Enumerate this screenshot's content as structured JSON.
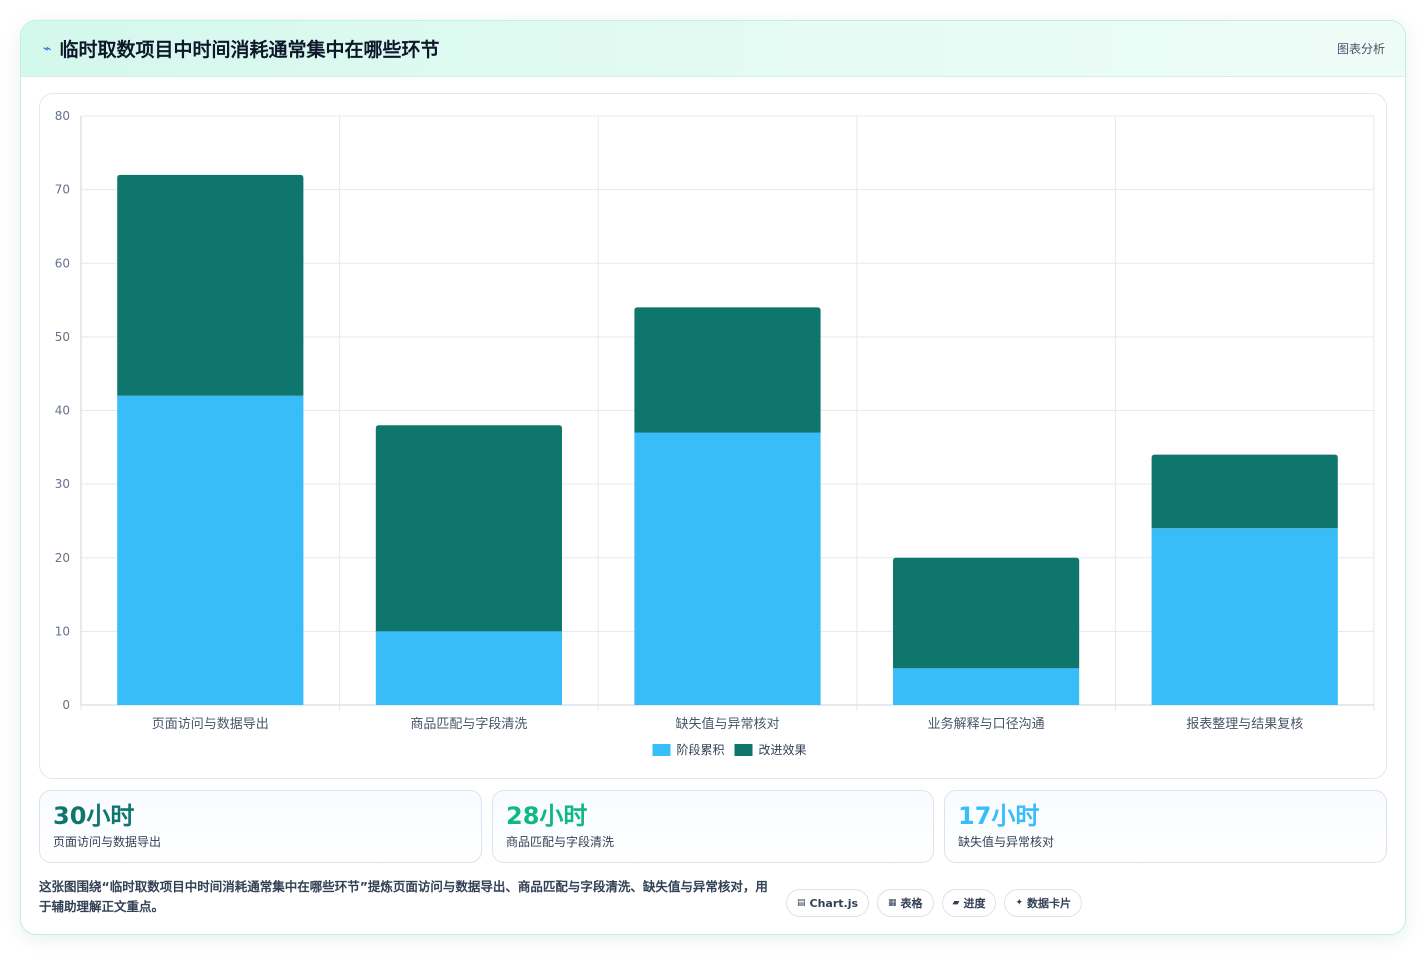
{
  "header": {
    "icon": "chart-trend-icon",
    "title": "临时取数项目中时间消耗通常集中在哪些环节",
    "tag": "图表分析"
  },
  "chart_data": {
    "type": "bar",
    "stacked": true,
    "categories": [
      "页面访问与数据导出",
      "商品匹配与字段清洗",
      "缺失值与异常核对",
      "业务解释与口径沟通",
      "报表整理与结果复核"
    ],
    "series": [
      {
        "name": "阶段累积",
        "color": "#38bdf8",
        "values": [
          42,
          10,
          37,
          5,
          24
        ]
      },
      {
        "name": "改进效果",
        "color": "#0f766e",
        "values": [
          30,
          28,
          17,
          15,
          10
        ]
      }
    ],
    "ylim": [
      0,
      80
    ],
    "yticks": [
      0,
      10,
      20,
      30,
      40,
      50,
      60,
      70,
      80
    ],
    "grid": true,
    "legend": "bottom"
  },
  "stats": [
    {
      "value": "30小时",
      "label": "页面访问与数据导出",
      "color": "#0f766e"
    },
    {
      "value": "28小时",
      "label": "商品匹配与字段清洗",
      "color": "#10b981"
    },
    {
      "value": "17小时",
      "label": "缺失值与异常核对",
      "color": "#38bdf8"
    }
  ],
  "footer": {
    "text": "这张图围绕“临时取数项目中时间消耗通常集中在哪些环节”提炼页面访问与数据导出、商品匹配与字段清洗、缺失值与异常核对，用于辅助理解正文重点。"
  },
  "chips": [
    {
      "icon": "▤",
      "label": "Chart.js"
    },
    {
      "icon": "▦",
      "label": "表格"
    },
    {
      "icon": "▰",
      "label": "进度"
    },
    {
      "icon": "✦",
      "label": "数据卡片"
    }
  ]
}
